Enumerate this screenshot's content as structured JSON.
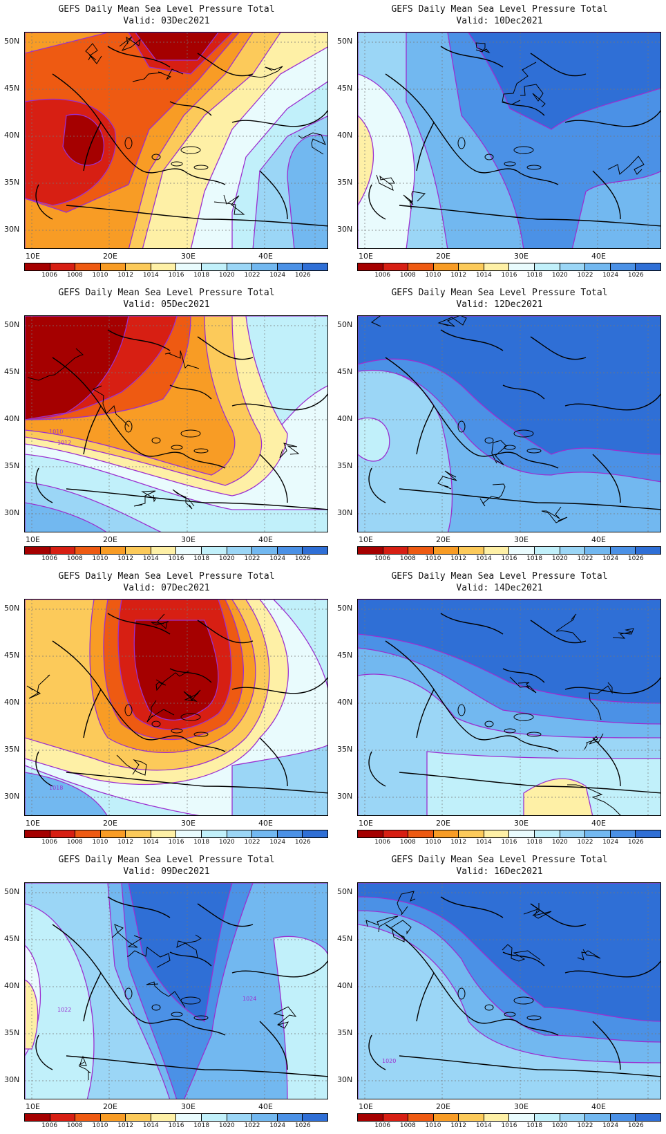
{
  "color_scale": {
    "colors": [
      "#a50000",
      "#d71f13",
      "#ee5a12",
      "#f89c25",
      "#fcca5a",
      "#fef0a6",
      "#e9fbfd",
      "#c1f0fa",
      "#9bd6f6",
      "#72b8f0",
      "#4b91e6",
      "#2f6fd6"
    ],
    "labels": [
      "1006",
      "1008",
      "1010",
      "1012",
      "1014",
      "1016",
      "1018",
      "1020",
      "1022",
      "1024",
      "1026"
    ]
  },
  "axes": {
    "lat_labels": [
      "50N",
      "45N",
      "40N",
      "35N",
      "30N"
    ],
    "lon_labels": [
      "10E",
      "20E",
      "30E",
      "40E"
    ]
  },
  "panels": [
    {
      "title": "GEFS Daily Mean Sea Level Pressure Total",
      "valid": "Valid: 03Dec2021",
      "regime": "low-west",
      "contour_labels": []
    },
    {
      "title": "GEFS Daily Mean Sea Level Pressure Total",
      "valid": "Valid: 10Dec2021",
      "regime": "high-mid",
      "contour_labels": []
    },
    {
      "title": "GEFS Daily Mean Sea Level Pressure Total",
      "valid": "Valid: 05Dec2021",
      "regime": "low-nw",
      "contour_labels": [
        "1010",
        "1012"
      ]
    },
    {
      "title": "GEFS Daily Mean Sea Level Pressure Total",
      "valid": "Valid: 12Dec2021",
      "regime": "high-strong",
      "contour_labels": []
    },
    {
      "title": "GEFS Daily Mean Sea Level Pressure Total",
      "valid": "Valid: 07Dec2021",
      "regime": "low-center",
      "contour_labels": [
        "1018"
      ]
    },
    {
      "title": "GEFS Daily Mean Sea Level Pressure Total",
      "valid": "Valid: 14Dec2021",
      "regime": "high-strong2",
      "contour_labels": []
    },
    {
      "title": "GEFS Daily Mean Sea Level Pressure Total",
      "valid": "Valid: 09Dec2021",
      "regime": "high-mixed",
      "contour_labels": [
        "1024",
        "1022"
      ]
    },
    {
      "title": "GEFS Daily Mean Sea Level Pressure Total",
      "valid": "Valid: 16Dec2021",
      "regime": "high-strong3",
      "contour_labels": [
        "1020"
      ]
    }
  ]
}
